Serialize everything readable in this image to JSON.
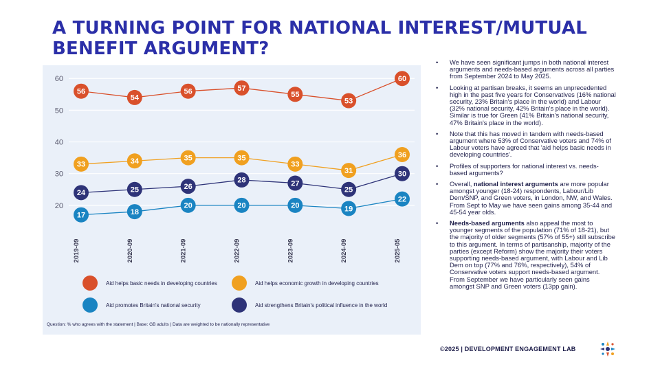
{
  "title": "A TURNING POINT FOR NATIONAL INTEREST/MUTUAL BENEFIT ARGUMENT?",
  "chart_data": {
    "type": "line",
    "categories": [
      "2019-09",
      "2020-09",
      "2021-09",
      "2022-09",
      "2023-09",
      "2024-09",
      "2025-05"
    ],
    "ylim": [
      10,
      62
    ],
    "yticks": [
      20,
      30,
      40,
      50,
      60
    ],
    "grid": true,
    "legend_position": "bottom",
    "series": [
      {
        "name": "Aid helps basic needs in developing countries",
        "color": "#d9502b",
        "values": [
          56,
          54,
          56,
          57,
          55,
          53,
          60
        ]
      },
      {
        "name": "Aid helps economic growth in developing countries",
        "color": "#f0a020",
        "values": [
          33,
          34,
          35,
          35,
          33,
          31,
          36
        ]
      },
      {
        "name": "Aid strengthens Britain's political influence in the world",
        "color": "#2e3378",
        "values": [
          24,
          25,
          26,
          28,
          27,
          25,
          30
        ]
      },
      {
        "name": "Aid promotes Britain's national security",
        "color": "#1a84c2",
        "values": [
          17,
          18,
          20,
          20,
          20,
          19,
          22
        ]
      }
    ],
    "footnote": "Question: % who agrees with the statement | Base: GB adults | Data are weighted to be nationally representative"
  },
  "legend": [
    {
      "label": "Aid helps basic needs in developing countries",
      "color": "#d9502b"
    },
    {
      "label": "Aid helps economic growth in developing countries",
      "color": "#f0a020"
    },
    {
      "label": "Aid promotes Britain's national security",
      "color": "#1a84c2"
    },
    {
      "label": "Aid strengthens Britain's political influence in the world",
      "color": "#2e3378"
    }
  ],
  "bullets": [
    {
      "pre": "We have seen significant jumps in both national interest arguments and needs-based arguments across all parties from September 2024 to May 2025.",
      "bold": "",
      "post": ""
    },
    {
      "pre": "Looking at partisan breaks, it seems an unprecedented high in the past five years for Conservatives (16% national security, 23% Britain's place in the world) and Labour (32% national security, 42% Britain's place in the world). Similar is true for Green (41% Britain's national security, 47% Britain's place in the world).",
      "bold": "",
      "post": ""
    },
    {
      "pre": "Note that this has moved in tandem with needs-based argument where 53% of Conservative voters and 74% of Labour voters have agreed that 'aid helps basic needs in developing countries'.",
      "bold": "",
      "post": ""
    },
    {
      "pre": "Profiles of supporters for national interest vs. needs-based arguments?",
      "bold": "",
      "post": ""
    },
    {
      "pre": "Overall, ",
      "bold": "national interest arguments",
      "post": " are more popular amongst younger (18-24) respondents, Labour/Lib Dem/SNP, and Green voters, in London, NW, and Wales. From Sept to May we have seen gains among 35-44 and 45-54 year olds."
    },
    {
      "pre": "",
      "bold": "Needs-based arguments",
      "post": " also appeal the most to younger segments of the population (71% of 18-21), but the majority of older segments (57% of 55+) still subscribe to this argument. In terms of partisanship, majority of the parties (except Reform) show the majority their voters supporting needs-based argument, with Labour and Lib Dem on top (77% and 76%, respectively), 54% of Conservative voters support needs-based argument. From September we have particularly seen gains amongst SNP and Green voters (13pp gain)."
    }
  ],
  "brand": "©2025 | DEVELOPMENT ENGAGEMENT LAB"
}
